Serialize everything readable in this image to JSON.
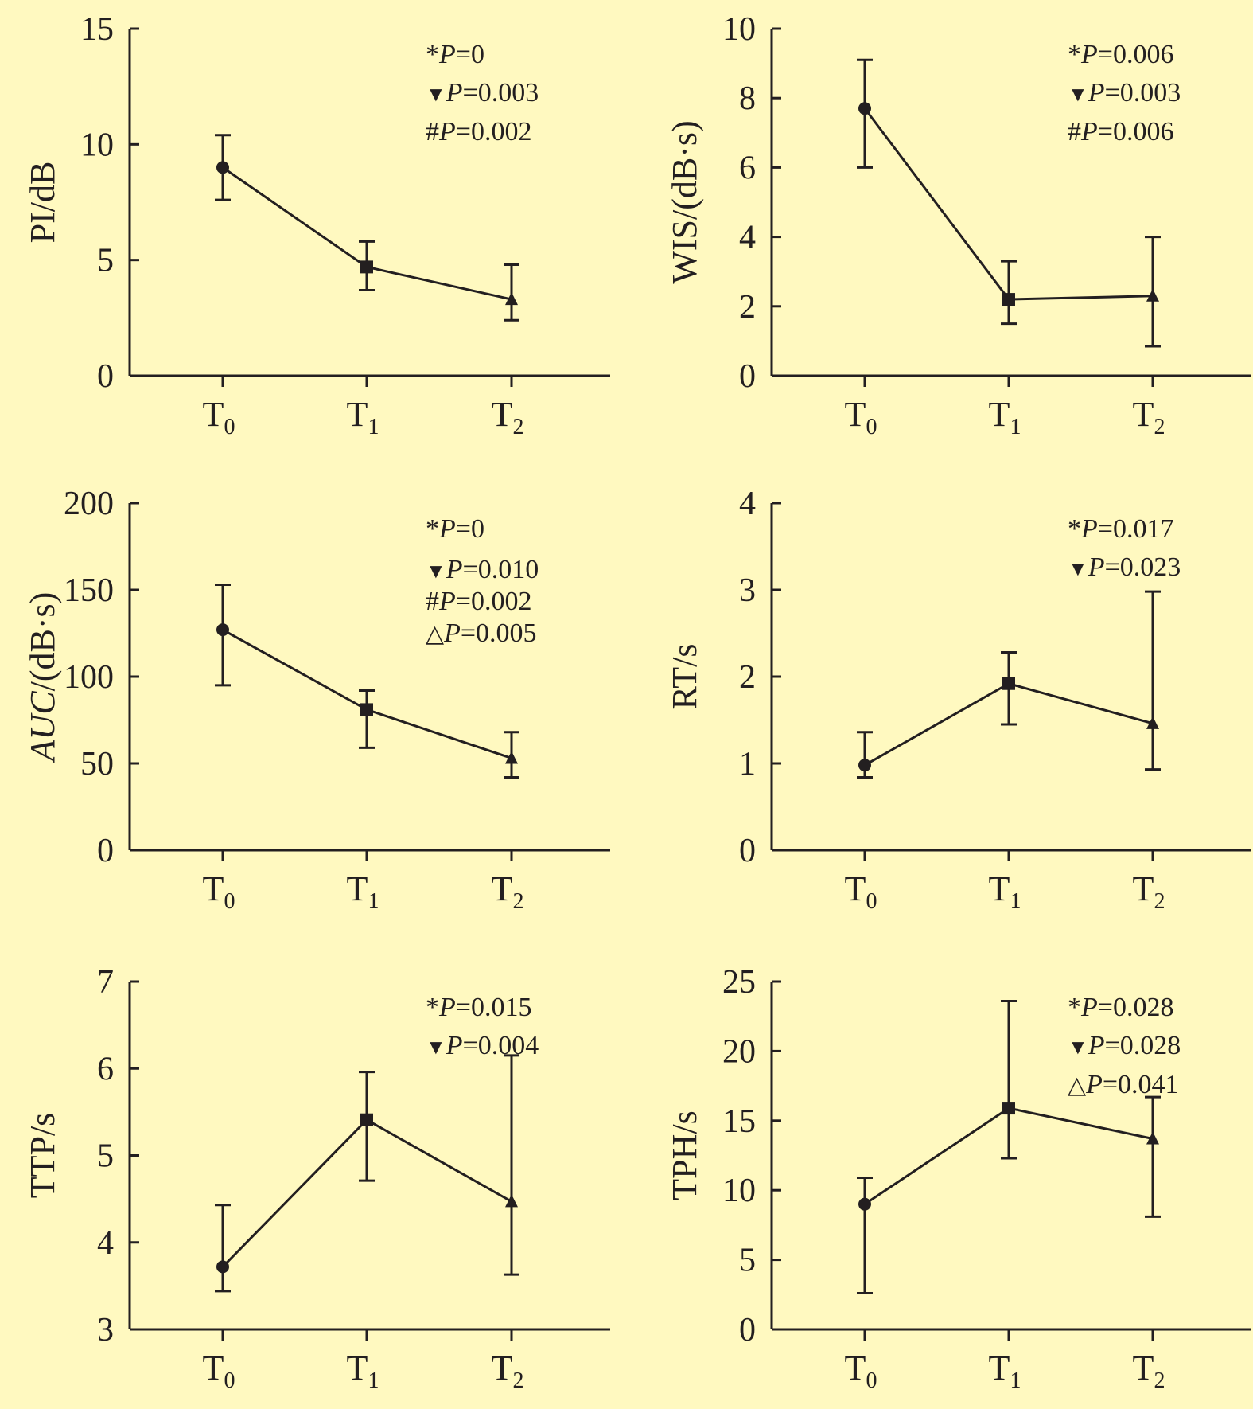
{
  "colors": {
    "background": "#fff9c0",
    "ink": "#231f20"
  },
  "chart_data": [
    {
      "type": "line",
      "ylabel": "PI/dB",
      "ylabel_italic": false,
      "ylim": [
        0,
        15
      ],
      "yticks": [
        0,
        5,
        10,
        15
      ],
      "categories": [
        {
          "main": "T",
          "sub": "0"
        },
        {
          "main": "T",
          "sub": "1"
        },
        {
          "main": "T",
          "sub": "2"
        }
      ],
      "markers": [
        "circle",
        "square",
        "triangle"
      ],
      "means": [
        9.0,
        4.7,
        3.3
      ],
      "err_low": [
        7.6,
        3.7,
        2.4
      ],
      "err_high": [
        10.4,
        5.8,
        4.8
      ],
      "annotations": [
        {
          "symbol": "*",
          "p": "P",
          "value": "=0"
        },
        {
          "symbol": "▼",
          "p": "P",
          "value": "=0.003"
        },
        {
          "symbol": "#",
          "p": "P",
          "value": "=0.002"
        }
      ]
    },
    {
      "type": "line",
      "ylabel": "WIS/(dB·s)",
      "ylabel_italic": false,
      "ylim": [
        0,
        10
      ],
      "yticks": [
        0,
        2,
        4,
        6,
        8,
        10
      ],
      "categories": [
        {
          "main": "T",
          "sub": "0"
        },
        {
          "main": "T",
          "sub": "1"
        },
        {
          "main": "T",
          "sub": "2"
        }
      ],
      "markers": [
        "circle",
        "square",
        "triangle"
      ],
      "means": [
        7.7,
        2.2,
        2.3
      ],
      "err_low": [
        6.0,
        1.5,
        0.85
      ],
      "err_high": [
        9.1,
        3.3,
        4.0
      ],
      "annotations": [
        {
          "symbol": "*",
          "p": "P",
          "value": "=0.006"
        },
        {
          "symbol": "▼",
          "p": "P",
          "value": "=0.003"
        },
        {
          "symbol": "#",
          "p": "P",
          "value": "=0.006"
        }
      ]
    },
    {
      "type": "line",
      "ylabel": "AUC/(dB·s)",
      "ylabel_italic": true,
      "ylim": [
        0,
        200
      ],
      "yticks": [
        0,
        50,
        100,
        150,
        200
      ],
      "categories": [
        {
          "main": "T",
          "sub": "0"
        },
        {
          "main": "T",
          "sub": "1"
        },
        {
          "main": "T",
          "sub": "2"
        }
      ],
      "markers": [
        "circle",
        "square",
        "triangle"
      ],
      "means": [
        127,
        81,
        53
      ],
      "err_low": [
        95,
        59,
        42
      ],
      "err_high": [
        153,
        92,
        68
      ],
      "annotations": [
        {
          "symbol": "*",
          "p": "P",
          "value": "=0"
        },
        {
          "symbol": "▼",
          "p": "P",
          "value": "=0.010"
        },
        {
          "symbol": "#",
          "p": "P",
          "value": "=0.002"
        },
        {
          "symbol": "△",
          "p": "P",
          "value": "=0.005"
        }
      ]
    },
    {
      "type": "line",
      "ylabel": "RT/s",
      "ylabel_italic": false,
      "ylim": [
        0,
        4
      ],
      "yticks": [
        0,
        1,
        2,
        3,
        4
      ],
      "categories": [
        {
          "main": "T",
          "sub": "0"
        },
        {
          "main": "T",
          "sub": "1"
        },
        {
          "main": "T",
          "sub": "2"
        }
      ],
      "markers": [
        "circle",
        "square",
        "triangle"
      ],
      "means": [
        0.98,
        1.92,
        1.46
      ],
      "err_low": [
        0.84,
        1.45,
        0.93
      ],
      "err_high": [
        1.36,
        2.28,
        2.98
      ],
      "annotations": [
        {
          "symbol": "*",
          "p": "P",
          "value": "=0.017"
        },
        {
          "symbol": "▼",
          "p": "P",
          "value": "=0.023"
        }
      ]
    },
    {
      "type": "line",
      "ylabel": "TTP/s",
      "ylabel_italic": false,
      "ylim": [
        3,
        7
      ],
      "yticks": [
        3,
        4,
        5,
        6,
        7
      ],
      "categories": [
        {
          "main": "T",
          "sub": "0"
        },
        {
          "main": "T",
          "sub": "1"
        },
        {
          "main": "T",
          "sub": "2"
        }
      ],
      "markers": [
        "circle",
        "square",
        "triangle"
      ],
      "means": [
        3.72,
        5.41,
        4.47
      ],
      "err_low": [
        3.44,
        4.71,
        3.63
      ],
      "err_high": [
        4.43,
        5.96,
        6.15
      ],
      "annotations": [
        {
          "symbol": "*",
          "p": "P",
          "value": "=0.015"
        },
        {
          "symbol": "▼",
          "p": "P",
          "value": "=0.004"
        }
      ]
    },
    {
      "type": "line",
      "ylabel": "TPH/s",
      "ylabel_italic": false,
      "ylim": [
        0,
        25
      ],
      "yticks": [
        0,
        5,
        10,
        15,
        20,
        25
      ],
      "categories": [
        {
          "main": "T",
          "sub": "0"
        },
        {
          "main": "T",
          "sub": "1"
        },
        {
          "main": "T",
          "sub": "2"
        }
      ],
      "markers": [
        "circle",
        "square",
        "triangle"
      ],
      "means": [
        9.0,
        15.9,
        13.7
      ],
      "err_low": [
        2.6,
        12.3,
        8.1
      ],
      "err_high": [
        10.9,
        23.6,
        16.7
      ],
      "annotations": [
        {
          "symbol": "*",
          "p": "P",
          "value": "=0.028"
        },
        {
          "symbol": "▼",
          "p": "P",
          "value": "=0.028"
        },
        {
          "symbol": "△",
          "p": "P",
          "value": "=0.041"
        }
      ]
    }
  ]
}
